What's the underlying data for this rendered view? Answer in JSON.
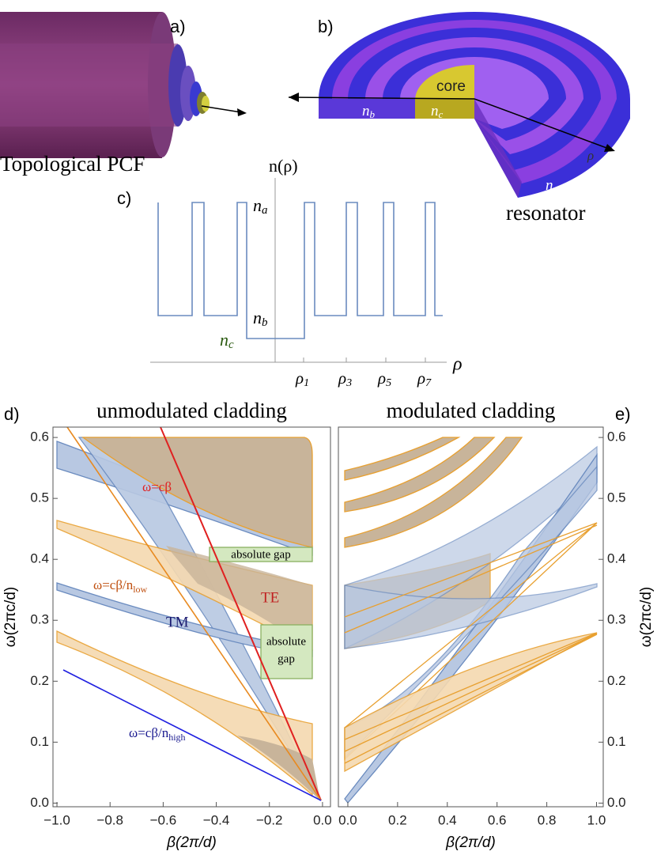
{
  "panels": {
    "a": "a)",
    "b": "b)",
    "c": "c)",
    "d": "d)",
    "e": "e)"
  },
  "figure_labels": {
    "pcf": "Topological PCF",
    "resonator": "resonator",
    "core": "core",
    "nb": {
      "base": "n",
      "sub": "b"
    },
    "nc": {
      "base": "n",
      "sub": "c"
    },
    "na": {
      "base": "n",
      "sub": "a"
    },
    "rho": "ρ"
  },
  "profile": {
    "ylabel": "n(ρ)",
    "xlabel": "ρ",
    "na": {
      "base": "n",
      "sub": "a"
    },
    "nb": {
      "base": "n",
      "sub": "b"
    },
    "nc": {
      "base": "n",
      "sub": "c"
    },
    "xticks": [
      {
        "base": "ρ",
        "sub": "1"
      },
      {
        "base": "ρ",
        "sub": "3"
      },
      {
        "base": "ρ",
        "sub": "5"
      },
      {
        "base": "ρ",
        "sub": "7"
      }
    ]
  },
  "plot_d": {
    "title": "unmodulated cladding",
    "xlabel": "β(2π/d)",
    "ylabel": "ω(2πc/d)",
    "xlim": [
      -1.015,
      0.03
    ],
    "ylim": [
      -0.006,
      0.617
    ],
    "xticks": [
      {
        "value": -1.0,
        "label": "−1.0"
      },
      {
        "value": -0.8,
        "label": "−0.8"
      },
      {
        "value": -0.6,
        "label": "−0.6"
      },
      {
        "value": -0.4,
        "label": "−0.4"
      },
      {
        "value": -0.2,
        "label": "−0.2"
      },
      {
        "value": 0,
        "label": "0.0"
      }
    ],
    "yticks": [
      {
        "value": 0,
        "label": "0.0"
      },
      0.1,
      0.2,
      0.3,
      0.4,
      0.5,
      0.6
    ],
    "annotations": {
      "light": "ω=cβ",
      "low": {
        "base": "ω=cβ/n",
        "sub": "low"
      },
      "high": {
        "base": "ω=cβ/n",
        "sub": "high"
      },
      "te": "TE",
      "tm": "TM",
      "gap1": "absolute gap",
      "gap2": [
        "absolute",
        "gap"
      ]
    }
  },
  "plot_e": {
    "title": "modulated cladding",
    "xlabel": "β(2π/d)",
    "ylabel": "ω(2πc/d)",
    "xlim": [
      -0.038,
      1.027
    ],
    "ylim": [
      -0.006,
      0.617
    ],
    "xticks": [
      {
        "value": 0,
        "label": "0.0"
      },
      0.2,
      0.4,
      0.6,
      0.8,
      {
        "value": 1.0,
        "label": "1.0"
      }
    ],
    "yticks": [
      {
        "value": 0,
        "label": "0.0"
      },
      0.1,
      0.2,
      0.3,
      0.4,
      0.5,
      0.6
    ]
  }
}
